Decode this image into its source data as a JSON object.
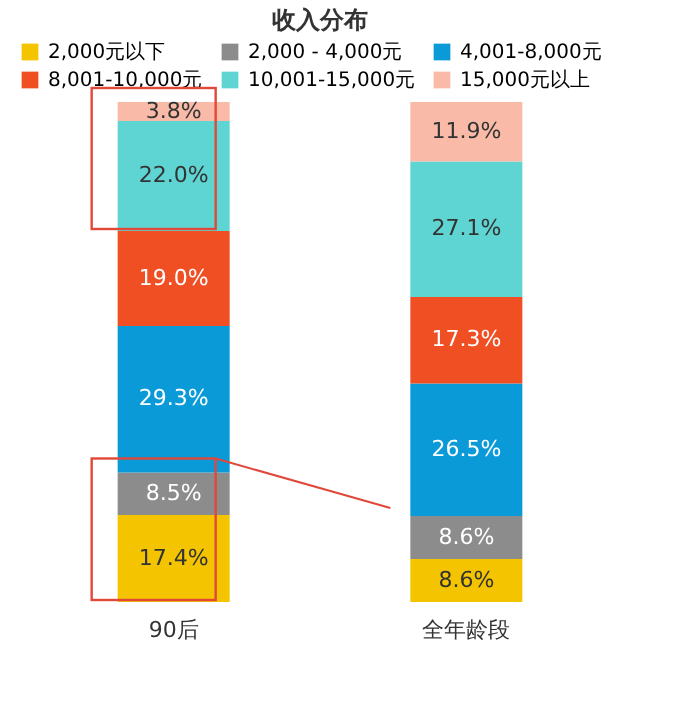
{
  "chart_data": {
    "type": "bar",
    "title": "收入分布",
    "stacked": true,
    "categories": [
      "90后",
      "全年龄段"
    ],
    "legend": "top",
    "tick_labels": "x",
    "series": [
      {
        "name": "2,000元以下",
        "color": "#f5c400",
        "values": [
          17.4,
          8.6
        ],
        "value_labels": [
          "17.4%",
          "8.6%"
        ]
      },
      {
        "name": "2,000 - 4,000元",
        "color": "#8c8c8c",
        "values": [
          8.5,
          8.6
        ],
        "value_labels": [
          "8.5%",
          "8.6%"
        ]
      },
      {
        "name": "4,001-8,000元",
        "color": "#0a9ad8",
        "values": [
          29.3,
          26.5
        ],
        "value_labels": [
          "29.3%",
          "26.5%"
        ]
      },
      {
        "name": "8,001-10,000元",
        "color": "#f04e23",
        "values": [
          19.0,
          17.3
        ],
        "value_labels": [
          "19.0%",
          "17.3%"
        ]
      },
      {
        "name": "10,001-15,000元",
        "color": "#5fd5d3",
        "values": [
          22.0,
          27.1
        ],
        "value_labels": [
          "22.0%",
          "27.1%"
        ]
      },
      {
        "name": "15,000元以上",
        "color": "#f9bba8",
        "values": [
          3.8,
          11.9
        ],
        "value_labels": [
          "3.8%",
          "11.9%"
        ]
      }
    ]
  }
}
